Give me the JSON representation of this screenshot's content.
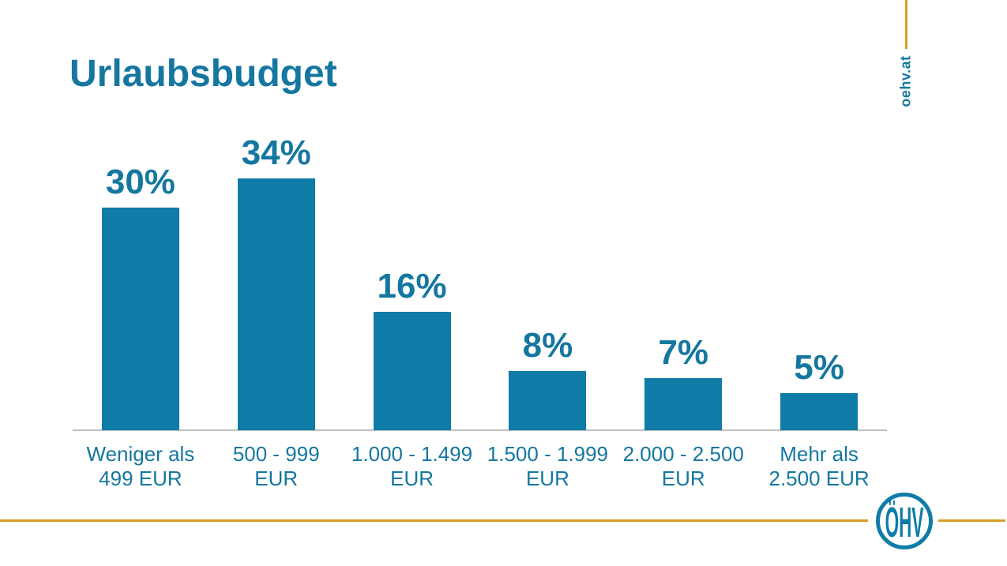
{
  "slide": {
    "title": "Urlaubsbudget",
    "brand": {
      "website_label": "oehv.at",
      "logo_text": "ÖHV"
    },
    "colors": {
      "teal_bar": "#0e7ca6",
      "teal_text": "#15779f",
      "gold": "#d7a021",
      "axis_gray": "#c0c0c0",
      "background": "#ffffff"
    }
  },
  "chart_data": {
    "type": "bar",
    "title": "Urlaubsbudget",
    "categories": [
      "Weniger als 499 EUR",
      "500 - 999 EUR",
      "1.000 - 1.499 EUR",
      "1.500 - 1.999 EUR",
      "2.000 - 2.500 EUR",
      "Mehr als 2.500 EUR"
    ],
    "category_lines": [
      [
        "Weniger als",
        "499 EUR"
      ],
      [
        "500 - 999",
        "EUR"
      ],
      [
        "1.000 - 1.499",
        "EUR"
      ],
      [
        "1.500 - 1.999",
        "EUR"
      ],
      [
        "2.000 - 2.500",
        "EUR"
      ],
      [
        "Mehr als",
        "2.500 EUR"
      ]
    ],
    "values": [
      30,
      34,
      16,
      8,
      7,
      5
    ],
    "data_labels": [
      "30%",
      "34%",
      "16%",
      "8%",
      "7%",
      "5%"
    ],
    "unit": "%",
    "xlabel": "",
    "ylabel": "",
    "ylim": [
      0,
      36
    ],
    "grid": false,
    "legend": null,
    "bar_color": "#0e7ca6"
  }
}
